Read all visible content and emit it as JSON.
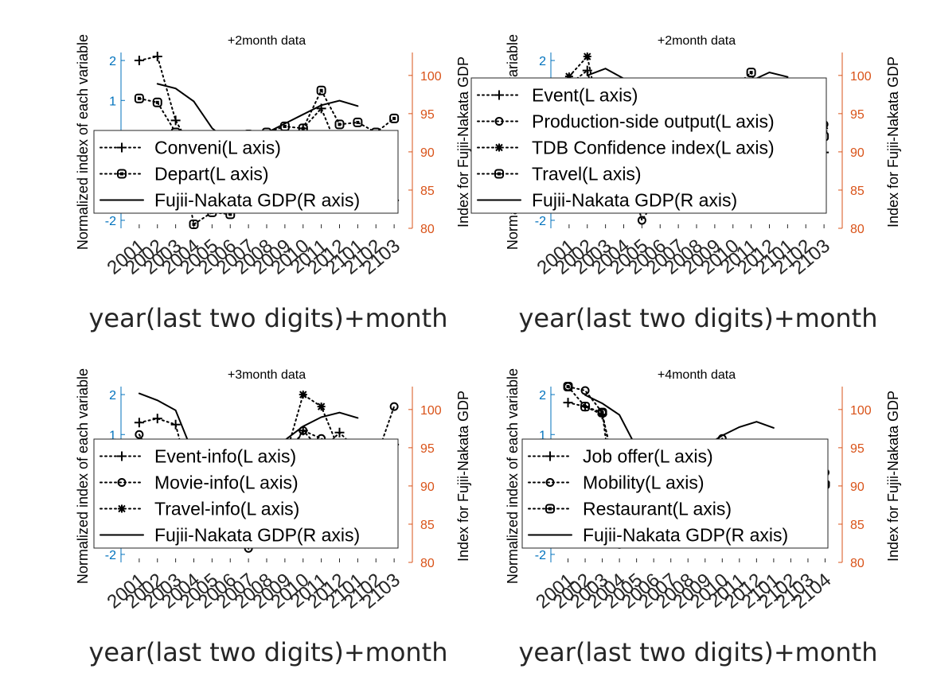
{
  "colors": {
    "left_axis": "#0072BD",
    "right_axis": "#D95319",
    "ink": "#000000"
  },
  "chart_data": [
    {
      "type": "line",
      "title": "+2month data",
      "xlabel": "year(last two digits)+month",
      "ylabel_left": "Normalized index of each variable",
      "ylabel_right": "Index for Fujii-Nakata GDP",
      "categories": [
        "2001",
        "2002",
        "2003",
        "2004",
        "2005",
        "2006",
        "2007",
        "2008",
        "2009",
        "2010",
        "2011",
        "2012",
        "2101",
        "2102",
        "2103"
      ],
      "ylim_left": [
        -2.2,
        2.2
      ],
      "yticks_left": [
        -2,
        -1,
        0,
        1,
        2
      ],
      "ylim_right": [
        80,
        103
      ],
      "yticks_right": [
        80,
        85,
        90,
        95,
        100
      ],
      "legend_position": "inside-middle",
      "series": [
        {
          "name": "Conveni(L axis)",
          "axis": "left",
          "marker": "plus",
          "style": "dotted",
          "values": [
            2.0,
            2.1,
            0.5,
            -0.3,
            -1.0,
            -1.2,
            -0.6,
            -0.1,
            -0.3,
            0.3,
            0.8,
            -0.3,
            -0.6,
            -0.8,
            -1.5
          ]
        },
        {
          "name": "Depart(L axis)",
          "axis": "left",
          "marker": "square",
          "style": "dotted",
          "values": [
            1.05,
            0.95,
            0.2,
            -2.1,
            -1.8,
            -1.85,
            0.15,
            0.2,
            0.35,
            0.3,
            1.25,
            0.4,
            0.45,
            0.2,
            0.55
          ]
        },
        {
          "name": "Fujii-Nakata GDP(R axis)",
          "axis": "right",
          "marker": "none",
          "style": "solid",
          "values": [
            null,
            98.9,
            98.3,
            96.6,
            93.1,
            91.2,
            91.8,
            92.5,
            93.7,
            94.9,
            96.1,
            96.7,
            96.0,
            null,
            null
          ]
        }
      ]
    },
    {
      "type": "line",
      "title": "+2month data",
      "xlabel": "year(last two digits)+month",
      "ylabel_left": "Normalized index of each variable",
      "ylabel_right": "Index for Fujii-Nakata GDP",
      "categories": [
        "2001",
        "2002",
        "2003",
        "2004",
        "2005",
        "2006",
        "2007",
        "2008",
        "2009",
        "2010",
        "2011",
        "2012",
        "2101",
        "2102",
        "2103"
      ],
      "ylim_left": [
        -2.2,
        2.2
      ],
      "yticks_left": [
        -2,
        -1,
        0,
        1,
        2
      ],
      "ylim_right": [
        80,
        103
      ],
      "yticks_right": [
        80,
        85,
        90,
        95,
        100
      ],
      "legend_position": "inside-top",
      "series": [
        {
          "name": "Event(L axis)",
          "axis": "left",
          "marker": "plus",
          "style": "dotted",
          "values": [
            1.4,
            1.75,
            -0.2,
            -0.8,
            -1.2,
            -0.9,
            -0.6,
            -0.1,
            0.2,
            0.3,
            0.6,
            0.3,
            0.2,
            0.1,
            -0.3
          ]
        },
        {
          "name": "Production-side output(L axis)",
          "axis": "left",
          "marker": "circle",
          "style": "dotted",
          "values": [
            1.45,
            1.35,
            0.4,
            -0.3,
            -2.0,
            -1.3,
            -0.8,
            -0.4,
            -0.3,
            0.0,
            0.3,
            0.5,
            0.6,
            0.5,
            0.4
          ]
        },
        {
          "name": "TDB Confidence index(L axis)",
          "axis": "left",
          "marker": "asterisk",
          "style": "dotted",
          "values": [
            1.6,
            2.1,
            -0.1,
            -1.0,
            -1.3,
            -1.0,
            -0.7,
            -0.4,
            -0.1,
            0.3,
            0.6,
            0.8,
            0.8,
            0.5,
            0.3
          ]
        },
        {
          "name": "Travel(L axis)",
          "axis": "left",
          "marker": "square",
          "style": "dotted",
          "values": [
            1.3,
            1.2,
            0.2,
            -1.5,
            -1.7,
            -1.2,
            -0.4,
            0.2,
            0.5,
            1.3,
            1.7,
            0.4,
            0.3,
            0.2,
            0.1
          ]
        },
        {
          "name": "Fujii-Nakata GDP(R axis)",
          "axis": "right",
          "marker": "none",
          "style": "solid",
          "values": [
            null,
            100.0,
            100.9,
            99.6,
            96.0,
            93.0,
            92.9,
            94.0,
            95.0,
            97.5,
            99.3,
            100.4,
            99.8,
            null,
            null
          ]
        }
      ]
    },
    {
      "type": "line",
      "title": "+3month data",
      "xlabel": "year(last two digits)+month",
      "ylabel_left": "Normalized index of each variable",
      "ylabel_right": "Index for Fujii-Nakata GDP",
      "categories": [
        "2001",
        "2002",
        "2003",
        "2004",
        "2005",
        "2006",
        "2007",
        "2008",
        "2009",
        "2010",
        "2011",
        "2012",
        "2101",
        "2102",
        "2103"
      ],
      "ylim_left": [
        -2.2,
        2.2
      ],
      "yticks_left": [
        -2,
        -1,
        0,
        1,
        2
      ],
      "ylim_right": [
        80,
        103
      ],
      "yticks_right": [
        80,
        85,
        90,
        95,
        100
      ],
      "legend_position": "inside-middle",
      "series": [
        {
          "name": "Event-info(L axis)",
          "axis": "left",
          "marker": "plus",
          "style": "dotted",
          "values": [
            1.3,
            1.4,
            1.25,
            -0.5,
            -1.0,
            -0.6,
            -0.4,
            0.1,
            0.4,
            1.1,
            0.6,
            1.05,
            0.6,
            -0.3,
            0.75
          ]
        },
        {
          "name": "Movie-info(L axis)",
          "axis": "left",
          "marker": "circle",
          "style": "dotted",
          "values": [
            1.0,
            0.2,
            -0.4,
            -1.2,
            -1.6,
            -1.3,
            -1.85,
            -0.4,
            0.3,
            1.1,
            0.9,
            0.6,
            0.3,
            0.4,
            1.7
          ]
        },
        {
          "name": "Travel-info(L axis)",
          "axis": "left",
          "marker": "asterisk",
          "style": "dotted",
          "values": [
            0.5,
            0.3,
            -0.5,
            -1.5,
            -1.6,
            -1.2,
            -0.8,
            -0.3,
            0.4,
            2.0,
            1.7,
            0.6,
            -0.2,
            -0.5,
            -0.3
          ]
        },
        {
          "name": "Fujii-Nakata GDP(R axis)",
          "axis": "right",
          "marker": "none",
          "style": "solid",
          "values": [
            102.1,
            101.2,
            99.9,
            94.0,
            91.0,
            90.4,
            92.0,
            94.5,
            96.0,
            97.8,
            99.0,
            99.6,
            98.9,
            null,
            null
          ]
        }
      ]
    },
    {
      "type": "line",
      "title": "+4month data",
      "xlabel": "year(last two digits)+month",
      "ylabel_left": "Normalized index of each variable",
      "ylabel_right": "Index for Fujii-Nakata GDP",
      "categories": [
        "2001",
        "2002",
        "2003",
        "2004",
        "2005",
        "2006",
        "2007",
        "2008",
        "2009",
        "2010",
        "2011",
        "2012",
        "2101",
        "2102",
        "2103",
        "2104"
      ],
      "ylim_left": [
        -2.2,
        2.2
      ],
      "yticks_left": [
        -2,
        -1,
        0,
        1,
        2
      ],
      "ylim_right": [
        80,
        103
      ],
      "yticks_right": [
        80,
        85,
        90,
        95,
        100
      ],
      "legend_position": "inside-middle",
      "series": [
        {
          "name": "Job offer(L axis)",
          "axis": "left",
          "marker": "plus",
          "style": "dotted",
          "values": [
            1.8,
            1.7,
            1.5,
            -0.3,
            -1.0,
            -1.0,
            -0.8,
            -0.6,
            -0.6,
            -0.5,
            -0.5,
            -0.4,
            -0.4,
            -0.2,
            -0.3,
            -0.2
          ]
        },
        {
          "name": "Mobility(L axis)",
          "axis": "left",
          "marker": "circle",
          "style": "dotted",
          "values": [
            2.2,
            2.1,
            1.55,
            -1.75,
            -1.2,
            -0.8,
            -0.6,
            -0.4,
            0.5,
            0.9,
            0.6,
            0.3,
            0.0,
            -0.2,
            0.3,
            0.05
          ]
        },
        {
          "name": "Restaurant(L axis)",
          "axis": "left",
          "marker": "square",
          "style": "dotted",
          "values": [
            2.2,
            1.7,
            1.55,
            -0.6,
            -1.0,
            -0.8,
            -0.5,
            0.3,
            0.5,
            0.7,
            0.3,
            -0.2,
            -0.4,
            -0.5,
            -0.6,
            -0.25
          ]
        },
        {
          "name": "Fujii-Nakata GDP(R axis)",
          "axis": "right",
          "marker": "none",
          "style": "solid",
          "values": [
            null,
            101.9,
            100.8,
            99.3,
            95.0,
            92.1,
            92.6,
            94.0,
            95.2,
            96.6,
            97.7,
            98.4,
            97.6,
            null,
            null,
            null
          ]
        }
      ]
    }
  ]
}
